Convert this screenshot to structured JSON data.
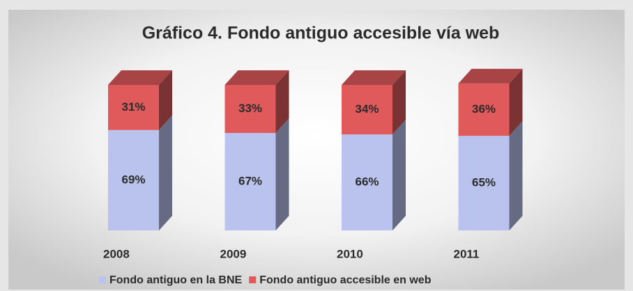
{
  "chart_data": {
    "type": "bar",
    "stacked": true,
    "title": "Gráfico 4. Fondo antiguo accesible vía web",
    "categories": [
      "2008",
      "2009",
      "2010",
      "2011"
    ],
    "series": [
      {
        "name": "Fondo antiguo en la BNE",
        "color": "#b9c3ee",
        "values": [
          69,
          67,
          66,
          65
        ],
        "value_labels": [
          "69%",
          "67%",
          "66%",
          "65%"
        ]
      },
      {
        "name": "Fondo antiguo accesible en web",
        "color": "#e05a5c",
        "values": [
          31,
          33,
          34,
          36
        ],
        "value_labels": [
          "31%",
          "33%",
          "34%",
          "36%"
        ]
      }
    ],
    "legend": "bottom"
  }
}
